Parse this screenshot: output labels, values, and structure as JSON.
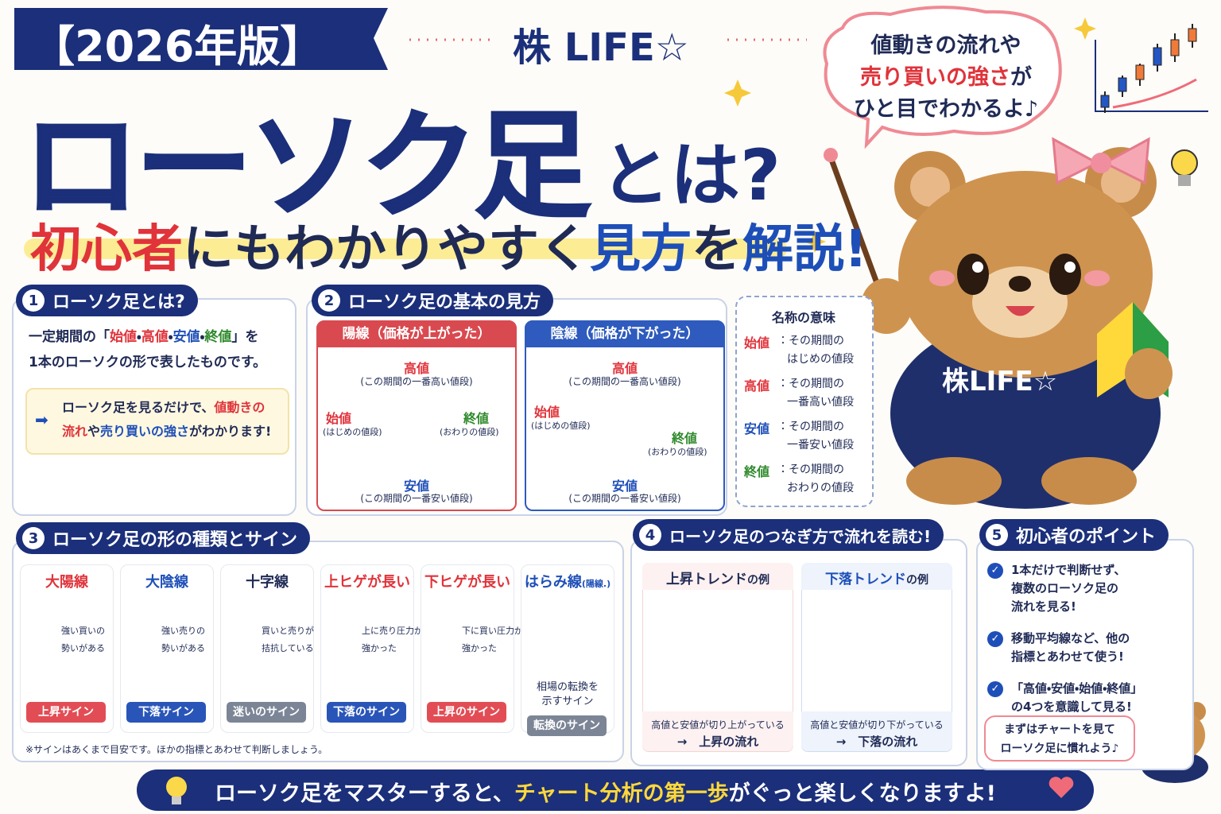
{
  "header": {
    "badge": "【2026年版】",
    "brand": "株 LIFE☆",
    "title_main": "ローソク足",
    "title_suffix": "とは?",
    "subtitle": [
      "初心者",
      "にもわかりやすく",
      "見方",
      "を",
      "解説",
      "!"
    ]
  },
  "bubble": {
    "lines": [
      [
        "値動きの流れや"
      ],
      [
        "売り買いの強さ",
        "が"
      ],
      [
        "ひと目でわかるよ♪"
      ]
    ]
  },
  "character": {
    "hoodie_text": "株LIFE☆"
  },
  "section1": {
    "number": "1",
    "title": "ローソク足とは?",
    "lines": [
      [
        "一定期間の「",
        "始値",
        "・",
        "高値",
        "・",
        "安値",
        "・",
        "終値",
        "」を"
      ],
      [
        "1本のローソクの形で表したものです。"
      ]
    ],
    "note": [
      [
        "ローソク足を見るだけで、",
        "値動きの"
      ],
      [
        "流れ",
        "や",
        "売り買いの強さ",
        "がわかります!"
      ]
    ]
  },
  "section2": {
    "number": "2",
    "title": "ローソク足の基本の見方",
    "panels": [
      {
        "title": "陽線（価格が上がった）",
        "high": "高値",
        "high_desc": "(この期間の一番高い値段)",
        "open": "始値",
        "open_desc": "(はじめの値段)",
        "close": "終値",
        "close_desc": "(おわりの値段)",
        "low": "安値",
        "low_desc": "(この期間の一番安い値段)"
      },
      {
        "title": "陰線（価格が下がった）",
        "high": "高値",
        "high_desc": "(この期間の一番高い値段)",
        "open": "始値",
        "open_desc": "(はじめの値段)",
        "close": "終値",
        "close_desc": "(おわりの値段)",
        "low": "安値",
        "low_desc": "(この期間の一番安い値段)"
      }
    ]
  },
  "names": {
    "title": "名称の意味",
    "items": [
      {
        "term": "始値",
        "desc": [
          "：その期間の",
          "はじめの値段"
        ]
      },
      {
        "term": "高値",
        "desc": [
          "：その期間の",
          "一番高い値段"
        ]
      },
      {
        "term": "安値",
        "desc": [
          "：その期間の",
          "一番安い値段"
        ]
      },
      {
        "term": "終値",
        "desc": [
          "：その期間の",
          "おわりの値段"
        ]
      }
    ]
  },
  "section3": {
    "number": "3",
    "title": "ローソク足の形の種類とサイン",
    "cards": [
      {
        "name": "大陽線",
        "desc": [
          "強い買いの",
          "勢いがある"
        ],
        "sign": "上昇サイン"
      },
      {
        "name": "大陰線",
        "desc": [
          "強い売りの",
          "勢いがある"
        ],
        "sign": "下落サイン"
      },
      {
        "name": "十字線",
        "desc": [
          "買いと売りが",
          "拮抗している"
        ],
        "sign": "迷いのサイン"
      },
      {
        "name": "上ヒゲが長い",
        "desc": [
          "上に売り圧力が",
          "強かった"
        ],
        "sign": "下落のサイン"
      },
      {
        "name": "下ヒゲが長い",
        "desc": [
          "下に買い圧力が",
          "強かった"
        ],
        "sign": "上昇のサイン"
      },
      {
        "name": "はらみ線",
        "name_note": "(陽線.)",
        "desc": [
          "相場の転換を",
          "示すサイン"
        ],
        "sign": "転換のサイン"
      }
    ],
    "note": "※サインはあくまで目安です。ほかの指標とあわせて判断しましょう。"
  },
  "section4": {
    "number": "4",
    "title": "ローソク足のつなぎ方で流れを読む!",
    "panels": [
      {
        "title": [
          "上昇トレンド",
          "の例"
        ],
        "desc": "高値と安値が切り上がっている",
        "result": "→　上昇の流れ"
      },
      {
        "title": [
          "下落トレンド",
          "の例"
        ],
        "desc": "高値と安値が切り下がっている",
        "result": "→　下落の流れ"
      }
    ]
  },
  "section5": {
    "number": "5",
    "title": "初心者のポイント",
    "items": [
      [
        "1本だけで判断せず、",
        "複数のローソク足の",
        "流れを見る!"
      ],
      [
        "移動平均線など、他の",
        "指標とあわせて使う!"
      ],
      [
        "「高値・安値・始値・終値」",
        "の4つを意識して見る!"
      ]
    ],
    "bubble": [
      "まずはチャートを見て",
      "ローソク足に慣れよう♪"
    ]
  },
  "footer": [
    "ローソク足をマスターすると、",
    "チャート分析の第一歩",
    "がぐっと楽しくなりますよ!"
  ]
}
